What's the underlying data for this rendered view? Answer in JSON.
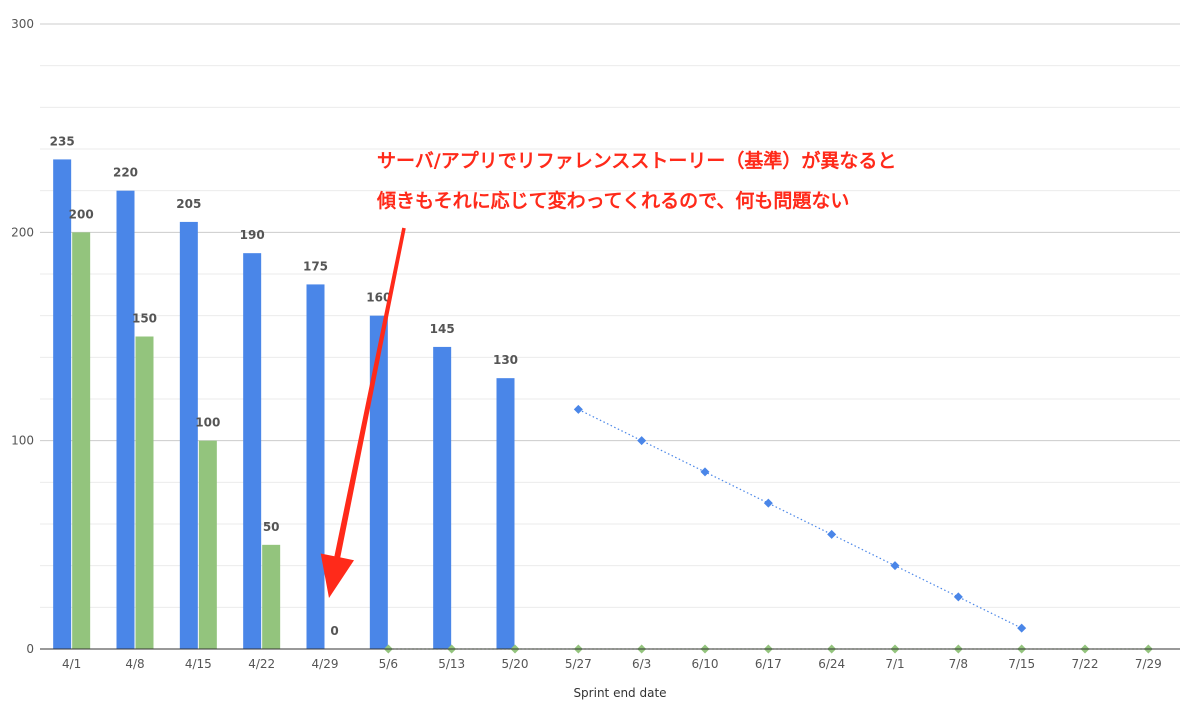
{
  "chart_data": {
    "type": "bar",
    "title": "",
    "xlabel": "Sprint end date",
    "ylabel": "",
    "ylim": [
      0,
      300
    ],
    "yticks": [
      0,
      100,
      200,
      300
    ],
    "grid": true,
    "categories": [
      "4/1",
      "4/8",
      "4/15",
      "4/22",
      "4/29",
      "5/6",
      "5/13",
      "5/20",
      "5/27",
      "6/3",
      "6/10",
      "6/17",
      "6/24",
      "7/1",
      "7/8",
      "7/15",
      "7/22",
      "7/29"
    ],
    "series": [
      {
        "kind": "bar",
        "color": "#4a86e8",
        "values": [
          235,
          220,
          205,
          190,
          175,
          160,
          145,
          130,
          null,
          null,
          null,
          null,
          null,
          null,
          null,
          null,
          null,
          null
        ],
        "labels": [
          "235",
          "220",
          "205",
          "190",
          "175",
          "160",
          "145",
          "130"
        ]
      },
      {
        "kind": "bar",
        "color": "#93c47d",
        "values": [
          200,
          150,
          100,
          50,
          0,
          null,
          null,
          null,
          null,
          null,
          null,
          null,
          null,
          null,
          null,
          null,
          null,
          null
        ],
        "labels": [
          "200",
          "150",
          "100",
          "50",
          "0"
        ]
      },
      {
        "kind": "line-dotted",
        "color": "#4a86e8",
        "marker": "diamond",
        "values": [
          null,
          null,
          null,
          null,
          null,
          null,
          null,
          null,
          115,
          100,
          85,
          70,
          55,
          40,
          25,
          10,
          null,
          null
        ]
      },
      {
        "kind": "line-dotted",
        "color": "#93c47d",
        "marker": "diamond",
        "values": [
          null,
          null,
          null,
          null,
          null,
          0,
          0,
          0,
          0,
          0,
          0,
          0,
          0,
          0,
          0,
          0,
          0,
          0
        ]
      }
    ],
    "annotations": [
      {
        "lines": [
          "サーバ/アプリでリファレンスストーリー（基準）が異なると",
          "傾きもそれに応じて変わってくれるので、何も問題ない"
        ],
        "color": "#ff2a1a",
        "arrow_to_category": "4/29"
      }
    ]
  }
}
